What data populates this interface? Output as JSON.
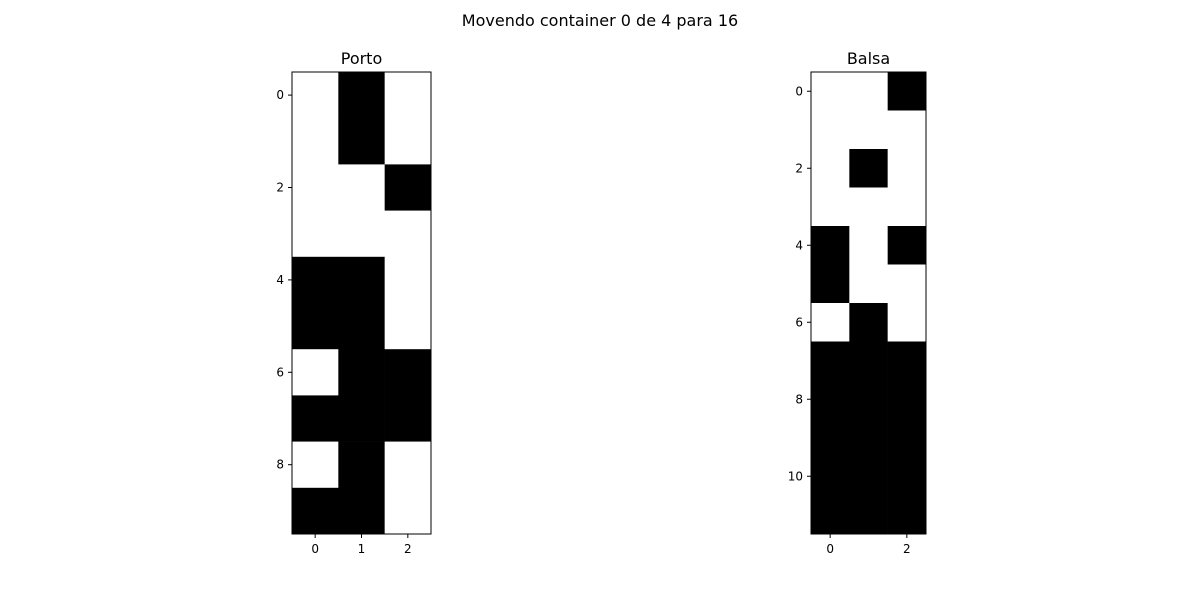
{
  "figure": {
    "suptitle": "Movendo container 0 de 4 para 16"
  },
  "chart_data": [
    {
      "type": "heatmap",
      "title": "Porto",
      "colormap": "binary",
      "colors": {
        "filled": "#000000",
        "empty": "#ffffff"
      },
      "xticks": [
        0,
        1,
        2
      ],
      "yticks": [
        0,
        2,
        4,
        6,
        8
      ],
      "x_range": [
        -0.5,
        2.5
      ],
      "y_range": [
        9.5,
        -0.5
      ],
      "grid": false,
      "values": [
        [
          0,
          1,
          0
        ],
        [
          0,
          1,
          0
        ],
        [
          0,
          0,
          1
        ],
        [
          0,
          0,
          0
        ],
        [
          1,
          1,
          0
        ],
        [
          1,
          1,
          0
        ],
        [
          0,
          1,
          1
        ],
        [
          1,
          1,
          1
        ],
        [
          0,
          1,
          0
        ],
        [
          1,
          1,
          0
        ]
      ]
    },
    {
      "type": "heatmap",
      "title": "Balsa",
      "colormap": "binary",
      "colors": {
        "filled": "#000000",
        "empty": "#ffffff"
      },
      "xticks": [
        0,
        2
      ],
      "yticks": [
        0,
        2,
        4,
        6,
        8,
        10
      ],
      "x_range": [
        -0.5,
        2.5
      ],
      "y_range": [
        11.5,
        -0.5
      ],
      "grid": false,
      "values": [
        [
          0,
          0,
          1
        ],
        [
          0,
          0,
          0
        ],
        [
          0,
          1,
          0
        ],
        [
          0,
          0,
          0
        ],
        [
          1,
          0,
          1
        ],
        [
          1,
          0,
          0
        ],
        [
          0,
          1,
          0
        ],
        [
          1,
          1,
          1
        ],
        [
          1,
          1,
          1
        ],
        [
          1,
          1,
          1
        ],
        [
          1,
          1,
          1
        ],
        [
          1,
          1,
          1
        ]
      ]
    }
  ]
}
